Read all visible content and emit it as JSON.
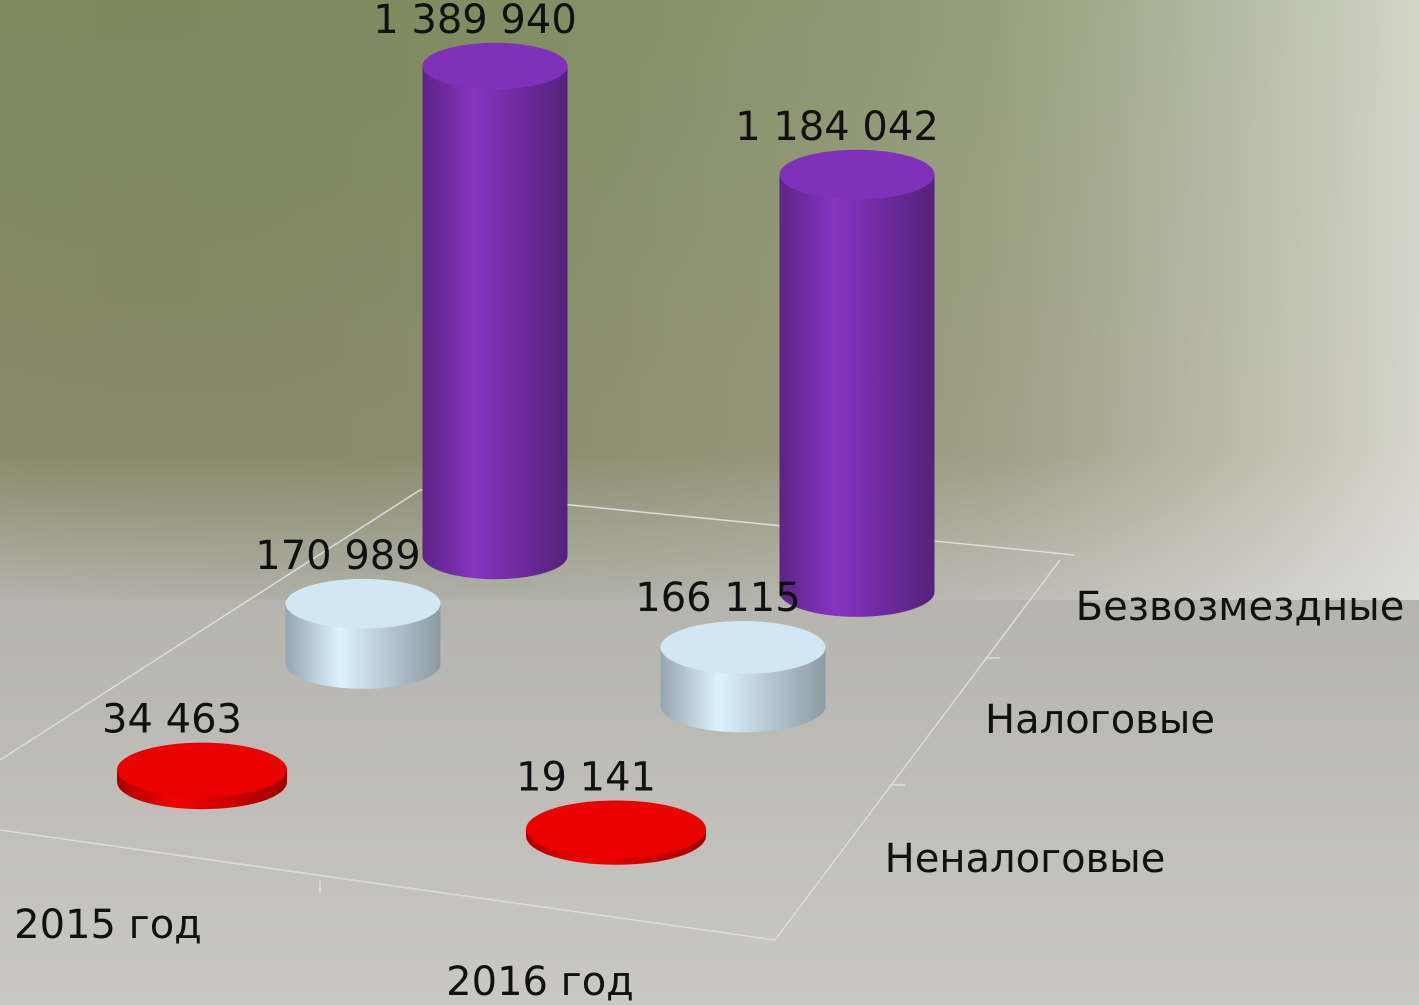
{
  "chart_data": {
    "type": "bar3d_cylinder",
    "categories": [
      "2015 год",
      "2016 год"
    ],
    "series": [
      {
        "name": "Неналоговые",
        "color": "#e00000",
        "values": [
          34463,
          19141
        ],
        "value_labels": [
          "34 463",
          "19 141"
        ]
      },
      {
        "name": "Налоговые",
        "color": "#c8dce8",
        "values": [
          170989,
          166115
        ],
        "value_labels": [
          "170 989",
          "166 115"
        ]
      },
      {
        "name": "Безвозмездные",
        "color": "#7a2fb0",
        "values": [
          1389940,
          1184042
        ],
        "value_labels": [
          "1 389 940",
          "1 184 042"
        ]
      }
    ]
  }
}
